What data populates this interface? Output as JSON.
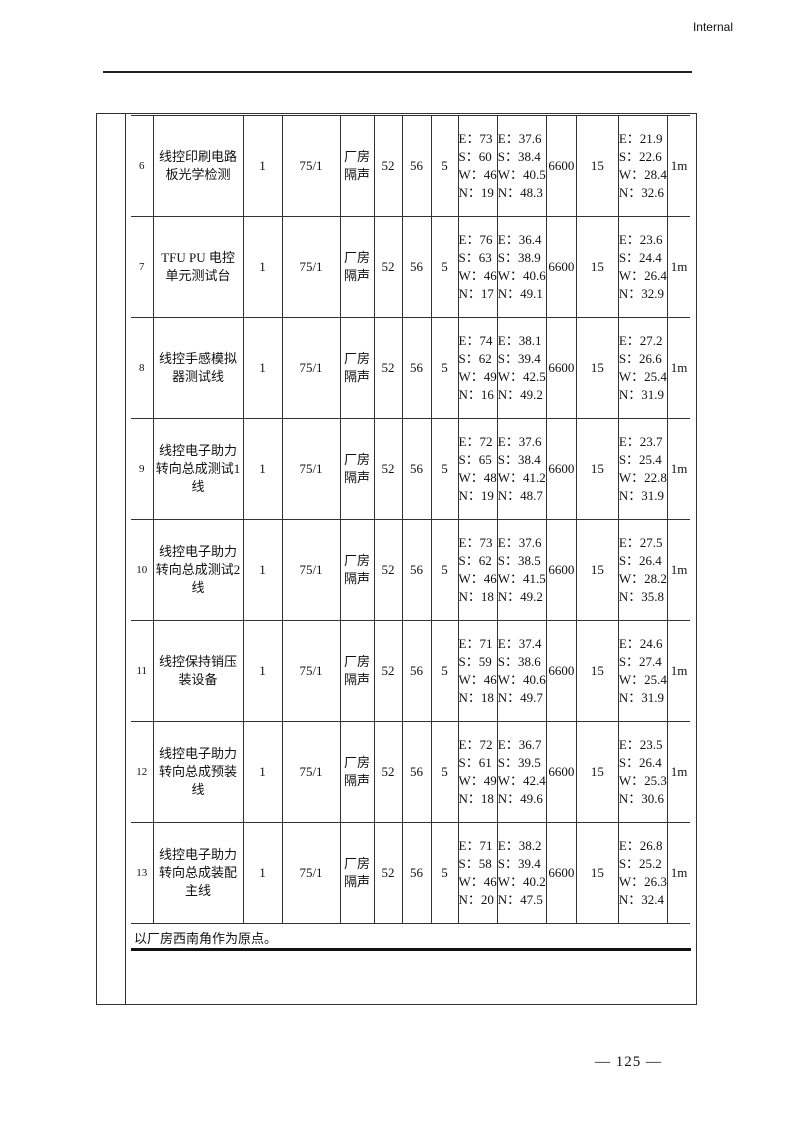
{
  "header": {
    "label": "Internal"
  },
  "table": {
    "rows": [
      {
        "no": "6",
        "name": "线控印刷电路板光学检测",
        "qty": "1",
        "spec": "75/1",
        "measure": "厂房隔声",
        "v1": "52",
        "v2": "56",
        "v3": "5",
        "dist": [
          "E：73",
          "S：60",
          "W：46",
          "N：19"
        ],
        "level": [
          "E：37.6",
          "S：38.4",
          "W：40.5",
          "N：48.3"
        ],
        "hours": "6600",
        "height": "15",
        "contrib": [
          "E：21.9",
          "S：22.6",
          "W：28.4",
          "N：32.6"
        ],
        "ref": "1m"
      },
      {
        "no": "7",
        "name": "TFU PU 电控单元测试台",
        "qty": "1",
        "spec": "75/1",
        "measure": "厂房隔声",
        "v1": "52",
        "v2": "56",
        "v3": "5",
        "dist": [
          "E：76",
          "S：63",
          "W：46",
          "N：17"
        ],
        "level": [
          "E：36.4",
          "S：38.9",
          "W：40.6",
          "N：49.1"
        ],
        "hours": "6600",
        "height": "15",
        "contrib": [
          "E：23.6",
          "S：24.4",
          "W：26.4",
          "N：32.9"
        ],
        "ref": "1m"
      },
      {
        "no": "8",
        "name": "线控手感模拟器测试线",
        "qty": "1",
        "spec": "75/1",
        "measure": "厂房隔声",
        "v1": "52",
        "v2": "56",
        "v3": "5",
        "dist": [
          "E：74",
          "S：62",
          "W：49",
          "N：16"
        ],
        "level": [
          "E：38.1",
          "S：39.4",
          "W：42.5",
          "N：49.2"
        ],
        "hours": "6600",
        "height": "15",
        "contrib": [
          "E：27.2",
          "S：26.6",
          "W：25.4",
          "N：31.9"
        ],
        "ref": "1m"
      },
      {
        "no": "9",
        "name": "线控电子助力转向总成测试1线",
        "qty": "1",
        "spec": "75/1",
        "measure": "厂房隔声",
        "v1": "52",
        "v2": "56",
        "v3": "5",
        "dist": [
          "E：72",
          "S：65",
          "W：48",
          "N：19"
        ],
        "level": [
          "E：37.6",
          "S：38.4",
          "W：41.2",
          "N：48.7"
        ],
        "hours": "6600",
        "height": "15",
        "contrib": [
          "E：23.7",
          "S：25.4",
          "W：22.8",
          "N：31.9"
        ],
        "ref": "1m"
      },
      {
        "no": "10",
        "name": "线控电子助力转向总成测试2线",
        "qty": "1",
        "spec": "75/1",
        "measure": "厂房隔声",
        "v1": "52",
        "v2": "56",
        "v3": "5",
        "dist": [
          "E：73",
          "S：62",
          "W：46",
          "N：18"
        ],
        "level": [
          "E：37.6",
          "S：38.5",
          "W：41.5",
          "N：49.2"
        ],
        "hours": "6600",
        "height": "15",
        "contrib": [
          "E：27.5",
          "S：26.4",
          "W：28.2",
          "N：35.8"
        ],
        "ref": "1m"
      },
      {
        "no": "11",
        "name": "线控保持销压装设备",
        "qty": "1",
        "spec": "75/1",
        "measure": "厂房隔声",
        "v1": "52",
        "v2": "56",
        "v3": "5",
        "dist": [
          "E：71",
          "S：59",
          "W：46",
          "N：18"
        ],
        "level": [
          "E：37.4",
          "S：38.6",
          "W：40.6",
          "N：49.7"
        ],
        "hours": "6600",
        "height": "15",
        "contrib": [
          "E：24.6",
          "S：27.4",
          "W：25.4",
          "N：31.9"
        ],
        "ref": "1m"
      },
      {
        "no": "12",
        "name": "线控电子助力转向总成预装线",
        "qty": "1",
        "spec": "75/1",
        "measure": "厂房隔声",
        "v1": "52",
        "v2": "56",
        "v3": "5",
        "dist": [
          "E：72",
          "S：61",
          "W：49",
          "N：18"
        ],
        "level": [
          "E：36.7",
          "S：39.5",
          "W：42.4",
          "N：49.6"
        ],
        "hours": "6600",
        "height": "15",
        "contrib": [
          "E：23.5",
          "S：26.4",
          "W：25.3",
          "N：30.6"
        ],
        "ref": "1m"
      },
      {
        "no": "13",
        "name": "线控电子助力转向总成装配主线",
        "qty": "1",
        "spec": "75/1",
        "measure": "厂房隔声",
        "v1": "52",
        "v2": "56",
        "v3": "5",
        "dist": [
          "E：71",
          "S：58",
          "W：46",
          "N：20"
        ],
        "level": [
          "E：38.2",
          "S：39.4",
          "W：40.2",
          "N：47.5"
        ],
        "hours": "6600",
        "height": "15",
        "contrib": [
          "E：26.8",
          "S：25.2",
          "W：26.3",
          "N：32.4"
        ],
        "ref": "1m"
      }
    ]
  },
  "note": "以厂房西南角作为原点。",
  "footer": {
    "page_number": "— 125 —"
  }
}
